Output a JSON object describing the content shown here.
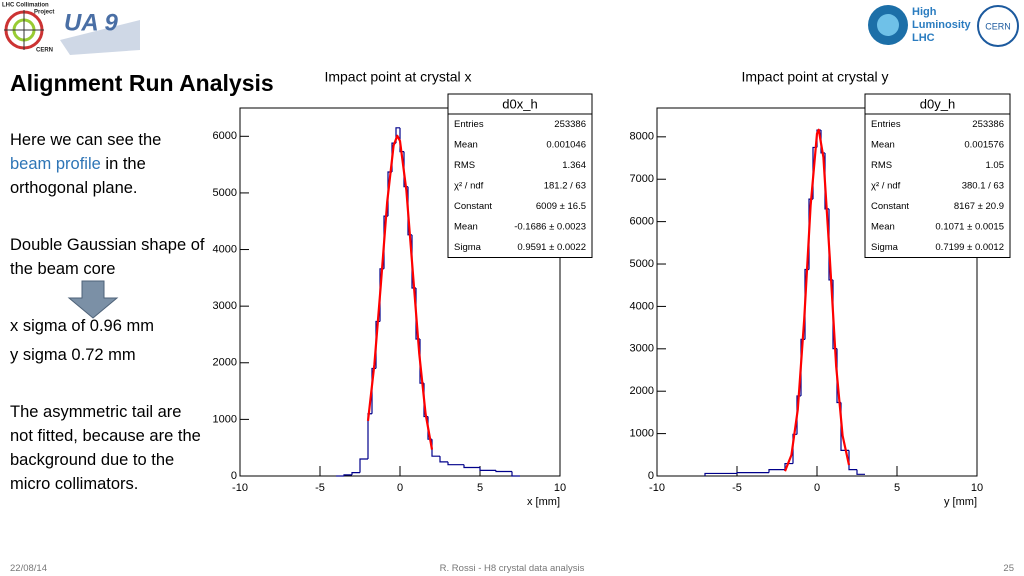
{
  "slide": {
    "title": "Alignment Run Analysis",
    "logos": {
      "collimation": [
        "LHC Collimation",
        "Project",
        "CERN"
      ],
      "ua9": "UA 9",
      "hilumi": [
        "High",
        "Luminosity",
        "LHC"
      ],
      "cern": "CERN"
    },
    "paragraphs": [
      [
        "Here we can see the ",
        "beam profile",
        " in the orthogonal plane."
      ],
      "Double Gaussian shape of the beam core",
      "x sigma of 0.96 mm",
      "y sigma 0.72 mm",
      "The asymmetric tail are not fitted, because are the background due to the micro collimators."
    ],
    "footer": {
      "date": "22/08/14",
      "center": "R. Rossi - H8 crystal data analysis",
      "page": "25"
    }
  },
  "chart_data": [
    {
      "type": "histogram",
      "title": "Impact point at crystal x",
      "x_label": "x [mm]",
      "xlim": [
        -10,
        10
      ],
      "xticks": [
        -10,
        -5,
        0,
        5,
        10
      ],
      "ylim": [
        0,
        6500
      ],
      "yticks": [
        0,
        1000,
        2000,
        3000,
        4000,
        5000,
        6000
      ],
      "bins": [
        -4,
        -3.5,
        -3,
        -2.5,
        -2,
        -1.75,
        -1.5,
        -1.25,
        -1,
        -0.75,
        -0.5,
        -0.25,
        0,
        0.25,
        0.5,
        0.75,
        1,
        1.25,
        1.5,
        1.75,
        2,
        2.5,
        3,
        4,
        5,
        6,
        7,
        7.5
      ],
      "counts": [
        0,
        20,
        60,
        300,
        1100,
        1900,
        2730,
        3660,
        4590,
        5370,
        5880,
        6150,
        5730,
        5110,
        4260,
        3320,
        2420,
        1640,
        1050,
        650,
        350,
        250,
        200,
        150,
        100,
        80,
        0
      ],
      "color": "#00008b",
      "fit": {
        "color": "#ff0000",
        "x": [
          -2,
          -1.6,
          -1.2,
          -0.8,
          -0.4,
          -0.17,
          0,
          0.4,
          0.8,
          1.2,
          1.6,
          2.0
        ],
        "values": [
          974,
          1974,
          3371,
          4842,
          5837,
          6009,
          5917,
          5040,
          3607,
          2171,
          1096,
          466
        ]
      },
      "stats": {
        "title": "d0x_h",
        "rows": [
          [
            "Entries",
            "253386"
          ],
          [
            "Mean",
            "0.001046"
          ],
          [
            "RMS",
            "1.364"
          ],
          [
            "χ² / ndf",
            "181.2 / 63"
          ],
          [
            "Constant",
            "6009 ± 16.5"
          ],
          [
            "Mean",
            "-0.1686 ± 0.0023"
          ],
          [
            "Sigma",
            "0.9591 ± 0.0022"
          ]
        ]
      }
    },
    {
      "type": "histogram",
      "title": "Impact point at crystal y",
      "x_label": "y [mm]",
      "xlim": [
        -10,
        10
      ],
      "xticks": [
        -10,
        -5,
        0,
        5,
        10
      ],
      "ylim": [
        0,
        8680
      ],
      "yticks": [
        0,
        1000,
        2000,
        3000,
        4000,
        5000,
        6000,
        7000,
        8000
      ],
      "bins": [
        -7,
        -5,
        -3,
        -2,
        -1.5,
        -1.25,
        -1,
        -0.75,
        -0.5,
        -0.25,
        0,
        0.25,
        0.5,
        0.75,
        1,
        1.25,
        1.5,
        2,
        2.5,
        3
      ],
      "counts": [
        60,
        80,
        150,
        293,
        983,
        1889,
        3222,
        4870,
        6530,
        7750,
        8160,
        7620,
        6300,
        4625,
        3004,
        1733,
        605,
        150,
        40
      ],
      "color": "#00008b",
      "fit": {
        "color": "#ff0000",
        "x": [
          -2,
          -1.6,
          -1.2,
          -0.8,
          -0.4,
          0,
          0.1071,
          0.4,
          0.8,
          1.2,
          1.6,
          2.0
        ],
        "values": [
          113,
          492,
          1572,
          3691,
          6373,
          8078,
          8167,
          7519,
          5139,
          2578,
          951,
          258
        ]
      },
      "stats": {
        "title": "d0y_h",
        "rows": [
          [
            "Entries",
            "253386"
          ],
          [
            "Mean",
            "0.001576"
          ],
          [
            "RMS",
            "1.05"
          ],
          [
            "χ² / ndf",
            "380.1 / 63"
          ],
          [
            "Constant",
            "8167 ± 20.9"
          ],
          [
            "Mean",
            "0.1071 ± 0.0015"
          ],
          [
            "Sigma",
            "0.7199 ± 0.0012"
          ]
        ]
      }
    }
  ]
}
